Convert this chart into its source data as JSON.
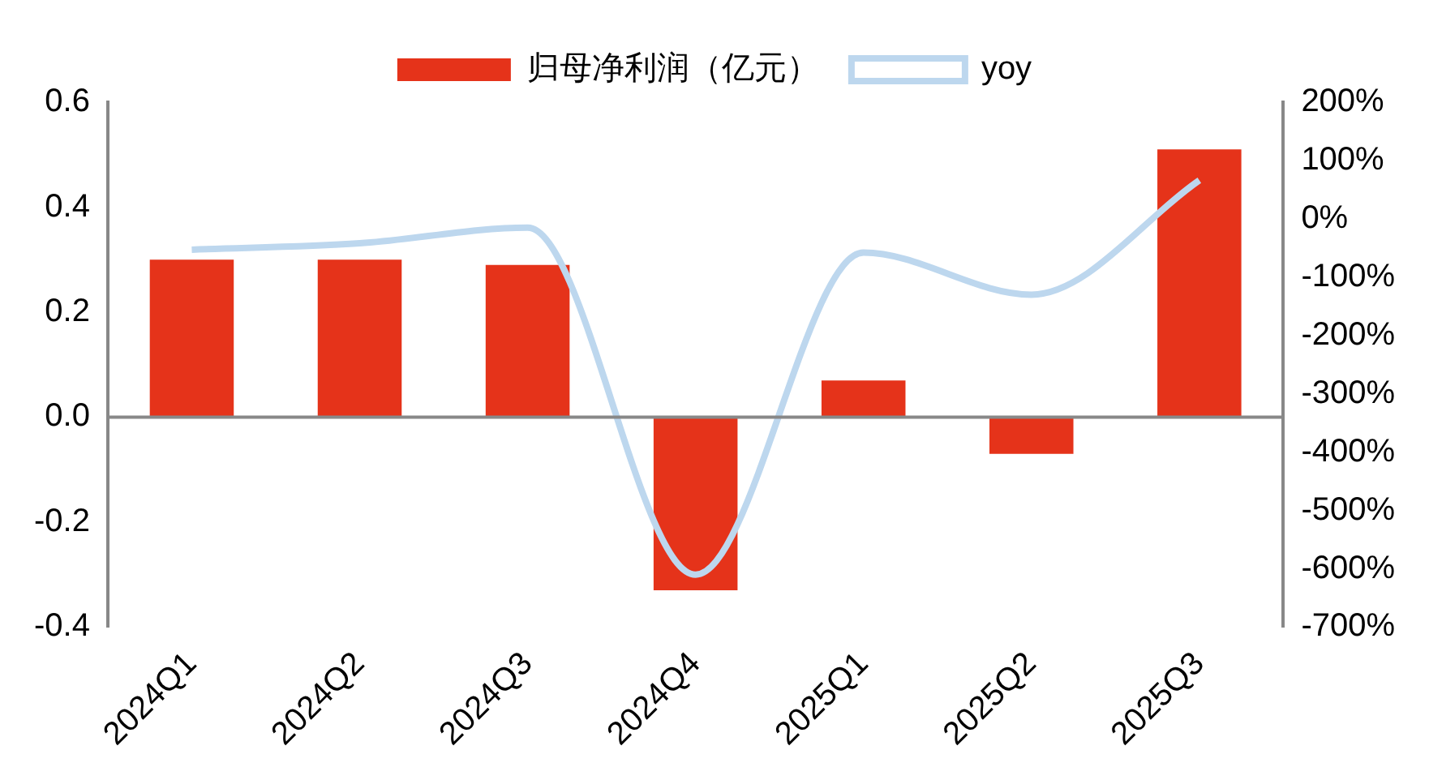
{
  "chart_data": {
    "type": "bar",
    "categories": [
      "2024Q1",
      "2024Q2",
      "2024Q3",
      "2024Q4",
      "2025Q1",
      "2025Q2",
      "2025Q3"
    ],
    "series": [
      {
        "name": "归母净利润（亿元）",
        "color": "#e5331a",
        "values": [
          0.3,
          0.3,
          0.29,
          -0.33,
          0.07,
          -0.07,
          0.51
        ]
      },
      {
        "name": "yoy",
        "type": "line",
        "axis": "y2",
        "color": "#bdd7ee",
        "marker": "none",
        "values": [
          -53,
          -42,
          -15,
          -610,
          -58,
          -130,
          66
        ]
      }
    ],
    "ylim": [
      -0.4,
      0.6
    ],
    "yticks": [
      {
        "value": -0.4,
        "label": "-0.4"
      },
      {
        "value": -0.2,
        "label": "-0.2"
      },
      {
        "value": 0,
        "label": "0.0"
      },
      {
        "value": 0.2,
        "label": "0.2"
      },
      {
        "value": 0.4,
        "label": "0.4"
      },
      {
        "value": 0.6,
        "label": "0.6"
      }
    ],
    "y2lim": [
      -700,
      200
    ],
    "y2ticks": [
      {
        "value": -700,
        "label": "-700%"
      },
      {
        "value": -600,
        "label": "-600%"
      },
      {
        "value": -500,
        "label": "-500%"
      },
      {
        "value": -400,
        "label": "-400%"
      },
      {
        "value": -300,
        "label": "-300%"
      },
      {
        "value": -200,
        "label": "-200%"
      },
      {
        "value": -100,
        "label": "-100%"
      },
      {
        "value": 0,
        "label": "0%"
      },
      {
        "value": 100,
        "label": "100%"
      },
      {
        "value": 200,
        "label": "200%"
      }
    ],
    "ref_lines": [
      {
        "axis": "y",
        "value": 0,
        "color": "#888888"
      }
    ],
    "grid": false,
    "legend": "top"
  }
}
